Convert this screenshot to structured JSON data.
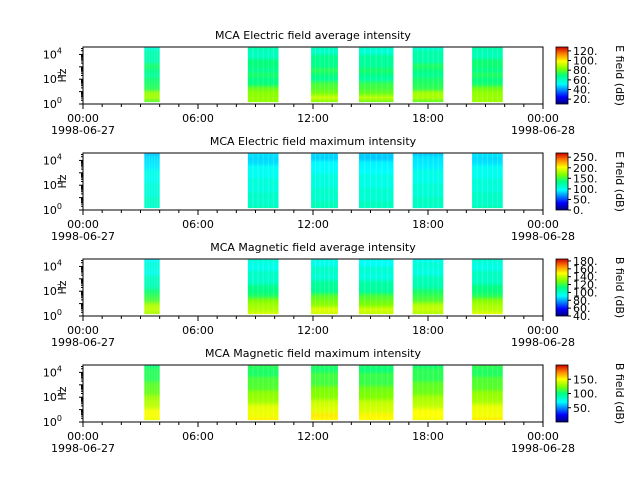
{
  "chart_data": [
    {
      "type": "heatmap",
      "title": "MCA  Electric field average intensity",
      "ylabel": "Hz",
      "colorbar_label": "E field (dB)",
      "colorbar_ticks": [
        "20.",
        "40.",
        "60.",
        "80.",
        "100.",
        "120."
      ],
      "colorbar_range": [
        10,
        128
      ],
      "x_ticks": [
        {
          "time": "00:00",
          "date": "1998-06-27"
        },
        {
          "time": "06:00",
          "date": ""
        },
        {
          "time": "12:00",
          "date": ""
        },
        {
          "time": "18:00",
          "date": ""
        },
        {
          "time": "00:00",
          "date": "1998-06-28"
        }
      ],
      "y_ticks": [
        {
          "base": "10",
          "exp": "0"
        },
        {
          "base": "10",
          "exp": "2"
        },
        {
          "base": "10",
          "exp": "4"
        }
      ],
      "xlim_hours": [
        0,
        24
      ],
      "ylim_log10": [
        0,
        4.6
      ],
      "data_windows_hours": [
        [
          3.2,
          4.0
        ],
        [
          8.6,
          10.2
        ],
        [
          11.9,
          13.3
        ],
        [
          14.4,
          16.2
        ],
        [
          17.2,
          18.8
        ],
        [
          20.3,
          21.9
        ]
      ],
      "level_profile": [
        {
          "log_f": 0.2,
          "value": 82
        },
        {
          "log_f": 0.6,
          "value": 90
        },
        {
          "log_f": 1.2,
          "value": 78
        },
        {
          "log_f": 2.0,
          "value": 68
        },
        {
          "log_f": 3.0,
          "value": 70
        },
        {
          "log_f": 4.2,
          "value": 60
        }
      ]
    },
    {
      "type": "heatmap",
      "title": "MCA  Electric field maximum intensity",
      "ylabel": "Hz",
      "colorbar_label": "E field (dB)",
      "colorbar_ticks": [
        "0.",
        "50.",
        "100.",
        "150.",
        "200.",
        "250."
      ],
      "colorbar_range": [
        0,
        270
      ],
      "x_ticks": [
        {
          "time": "00:00",
          "date": "1998-06-27"
        },
        {
          "time": "06:00",
          "date": ""
        },
        {
          "time": "12:00",
          "date": ""
        },
        {
          "time": "18:00",
          "date": ""
        },
        {
          "time": "00:00",
          "date": "1998-06-28"
        }
      ],
      "y_ticks": [
        {
          "base": "10",
          "exp": "0"
        },
        {
          "base": "10",
          "exp": "2"
        },
        {
          "base": "10",
          "exp": "4"
        }
      ],
      "xlim_hours": [
        0,
        24
      ],
      "ylim_log10": [
        0,
        4.6
      ],
      "data_windows_hours": [
        [
          3.2,
          4.0
        ],
        [
          8.6,
          10.2
        ],
        [
          11.9,
          13.3
        ],
        [
          14.4,
          16.2
        ],
        [
          17.2,
          18.8
        ],
        [
          20.3,
          21.9
        ]
      ],
      "level_profile": [
        {
          "log_f": 0.2,
          "value": 115
        },
        {
          "log_f": 1.5,
          "value": 108
        },
        {
          "log_f": 3.0,
          "value": 100
        },
        {
          "log_f": 4.2,
          "value": 85
        }
      ]
    },
    {
      "type": "heatmap",
      "title": "MCA  Magnetic field average intensity",
      "ylabel": "Hz",
      "colorbar_label": "B field (dB)",
      "colorbar_ticks": [
        "40.",
        "60.",
        "80.",
        "100.",
        "120.",
        "140.",
        "160.",
        "180."
      ],
      "colorbar_range": [
        40,
        185
      ],
      "x_ticks": [
        {
          "time": "00:00",
          "date": "1998-06-27"
        },
        {
          "time": "06:00",
          "date": ""
        },
        {
          "time": "12:00",
          "date": ""
        },
        {
          "time": "18:00",
          "date": ""
        },
        {
          "time": "00:00",
          "date": "1998-06-28"
        }
      ],
      "y_ticks": [
        {
          "base": "10",
          "exp": "0"
        },
        {
          "base": "10",
          "exp": "2"
        },
        {
          "base": "10",
          "exp": "4"
        }
      ],
      "xlim_hours": [
        0,
        24
      ],
      "ylim_log10": [
        0,
        4.6
      ],
      "data_windows_hours": [
        [
          3.2,
          4.0
        ],
        [
          8.6,
          10.2
        ],
        [
          11.9,
          13.3
        ],
        [
          14.4,
          16.2
        ],
        [
          17.2,
          18.8
        ],
        [
          20.3,
          21.9
        ]
      ],
      "level_profile": [
        {
          "log_f": 0.6,
          "value": 140
        },
        {
          "log_f": 1.2,
          "value": 128
        },
        {
          "log_f": 2.0,
          "value": 112
        },
        {
          "log_f": 3.0,
          "value": 100
        },
        {
          "log_f": 4.2,
          "value": 95
        }
      ]
    },
    {
      "type": "heatmap",
      "title": "MCA  Magnetic field maximum intensity",
      "ylabel": "Hz",
      "colorbar_label": "B field (dB)",
      "colorbar_ticks": [
        "50.",
        "100.",
        "150."
      ],
      "colorbar_range": [
        0,
        200
      ],
      "x_ticks": [
        {
          "time": "00:00",
          "date": "1998-06-27"
        },
        {
          "time": "06:00",
          "date": ""
        },
        {
          "time": "12:00",
          "date": ""
        },
        {
          "time": "18:00",
          "date": ""
        },
        {
          "time": "00:00",
          "date": "1998-06-28"
        }
      ],
      "y_ticks": [
        {
          "base": "10",
          "exp": "0"
        },
        {
          "base": "10",
          "exp": "2"
        },
        {
          "base": "10",
          "exp": "4"
        }
      ],
      "xlim_hours": [
        0,
        24
      ],
      "ylim_log10": [
        0,
        4.6
      ],
      "data_windows_hours": [
        [
          3.2,
          4.0
        ],
        [
          8.6,
          10.2
        ],
        [
          11.9,
          13.3
        ],
        [
          14.4,
          16.2
        ],
        [
          17.2,
          18.8
        ],
        [
          20.3,
          21.9
        ]
      ],
      "level_profile": [
        {
          "log_f": 0.6,
          "value": 150
        },
        {
          "log_f": 1.2,
          "value": 142
        },
        {
          "log_f": 2.0,
          "value": 128
        },
        {
          "log_f": 3.0,
          "value": 115
        },
        {
          "log_f": 4.2,
          "value": 105
        }
      ]
    }
  ]
}
